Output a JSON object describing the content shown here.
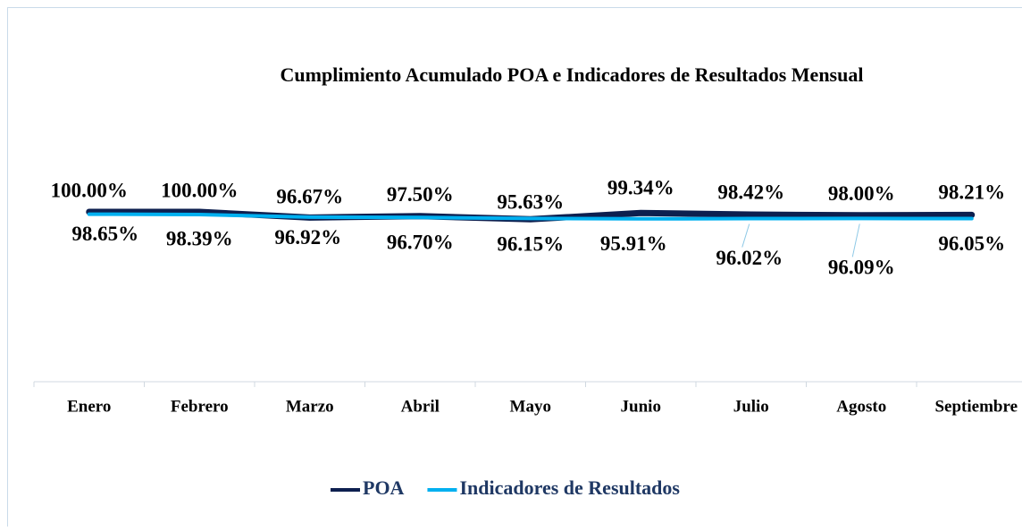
{
  "chart_data": {
    "type": "line",
    "title": "Cumplimiento Acumulado POA e Indicadores de Resultados Mensual",
    "categories": [
      "Enero",
      "Febrero",
      "Marzo",
      "Abril",
      "Mayo",
      "Junio",
      "Julio",
      "Agosto",
      "Septiembre"
    ],
    "series": [
      {
        "name": "POA",
        "color": "#0d1f4f",
        "values": [
          100.0,
          100.0,
          96.67,
          97.5,
          95.63,
          99.34,
          98.42,
          98.0,
          98.21
        ],
        "value_labels": [
          "100.00%",
          "100.00%",
          "96.67%",
          "97.50%",
          "95.63%",
          "99.34%",
          "98.42%",
          "98.00%",
          "98.21%"
        ]
      },
      {
        "name": "Indicadores de Resultados",
        "color": "#00b0f0",
        "values": [
          98.65,
          98.39,
          96.92,
          96.7,
          96.15,
          95.91,
          96.02,
          96.09,
          96.05
        ],
        "value_labels": [
          "98.65%",
          "98.39%",
          "96.92%",
          "96.70%",
          "96.15%",
          "95.91%",
          "96.02%",
          "96.09%",
          "96.05%"
        ]
      }
    ],
    "ylim": [
      0,
      120
    ],
    "legend": "bottom"
  }
}
